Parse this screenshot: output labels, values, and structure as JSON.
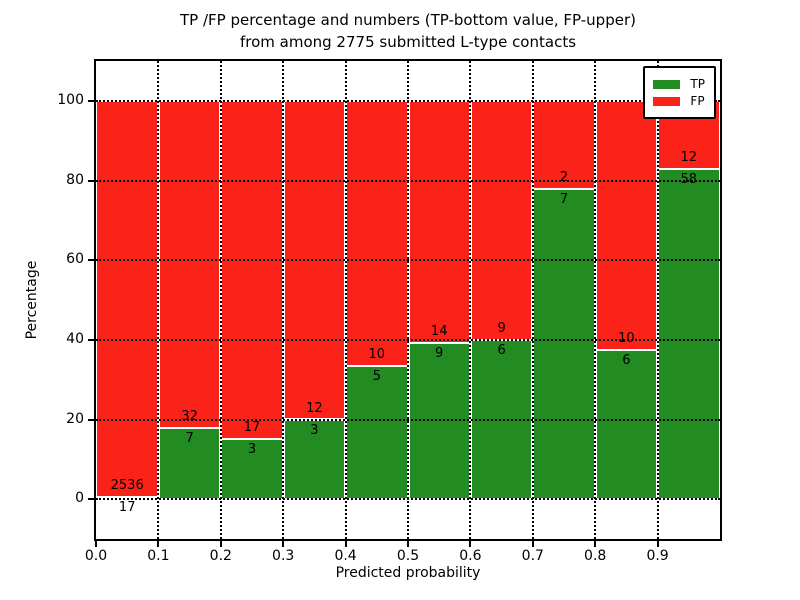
{
  "title": {
    "line1": "TP /FP percentage and numbers (TP-bottom value, FP-upper)",
    "line2": "from among 2775 submitted L-type contacts"
  },
  "chart_data": {
    "type": "bar",
    "stacked": true,
    "normalized_to_percent": true,
    "total_submitted": 2775,
    "categories": [
      "0.0-0.1",
      "0.1-0.2",
      "0.2-0.3",
      "0.3-0.4",
      "0.4-0.5",
      "0.5-0.6",
      "0.6-0.7",
      "0.7-0.8",
      "0.8-0.9",
      "0.9-1.0"
    ],
    "series": [
      {
        "name": "TP",
        "color": "#228b22",
        "values": [
          17,
          7,
          3,
          3,
          5,
          9,
          6,
          7,
          6,
          58
        ]
      },
      {
        "name": "FP",
        "color": "#fa2219",
        "values": [
          2536,
          32,
          17,
          12,
          10,
          14,
          9,
          2,
          10,
          12
        ]
      }
    ],
    "annotation_note": "TP count shown below segment boundary, FP count above",
    "xlabel": "Predicted probability",
    "ylabel": "Percentage",
    "x_ticks": [
      "0.0",
      "0.1",
      "0.2",
      "0.3",
      "0.4",
      "0.5",
      "0.6",
      "0.7",
      "0.8",
      "0.9"
    ],
    "y_ticks": [
      "0",
      "20",
      "40",
      "60",
      "80",
      "100"
    ],
    "xlim": [
      0.0,
      1.0
    ],
    "ylim": [
      -10,
      110
    ],
    "grid": {
      "style": "dotted",
      "color": "#000000",
      "on": true
    },
    "legend": {
      "position": "upper-right",
      "entries": [
        {
          "label": "TP",
          "color": "#228b22"
        },
        {
          "label": "FP",
          "color": "#fa2219"
        }
      ]
    },
    "colors": {
      "background": "#ffffff",
      "axis": "#000000",
      "text": "#000000"
    }
  }
}
